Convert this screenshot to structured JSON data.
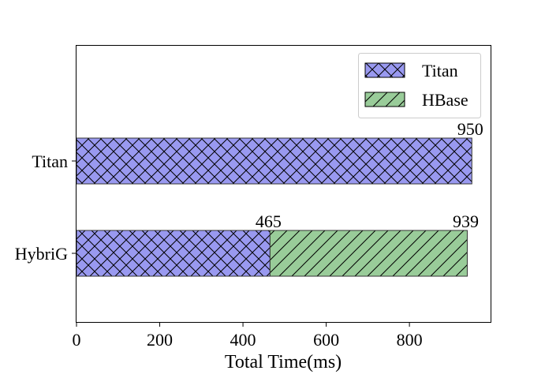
{
  "chart_data": {
    "type": "bar",
    "orientation": "horizontal",
    "stacked": true,
    "categories": [
      "Titan",
      "HybriG"
    ],
    "series": [
      {
        "name": "Titan",
        "values": [
          950,
          465
        ],
        "color": "#9999f0",
        "hatch": "crosshatch"
      },
      {
        "name": "HBase",
        "values": [
          0,
          474
        ],
        "color": "#99cc99",
        "hatch": "diagonal"
      }
    ],
    "data_labels": [
      {
        "category": "Titan",
        "value": 950,
        "text": "950"
      },
      {
        "category": "HybriG",
        "value": 465,
        "text": "465"
      },
      {
        "category": "HybriG",
        "value": 939,
        "text": "939"
      }
    ],
    "title": "",
    "xlabel": "Total Time(ms)",
    "ylabel": "",
    "xlim": [
      0,
      995
    ],
    "xticks": [
      0,
      200,
      400,
      600,
      800
    ],
    "grid": false,
    "legend_position": "top-right"
  }
}
